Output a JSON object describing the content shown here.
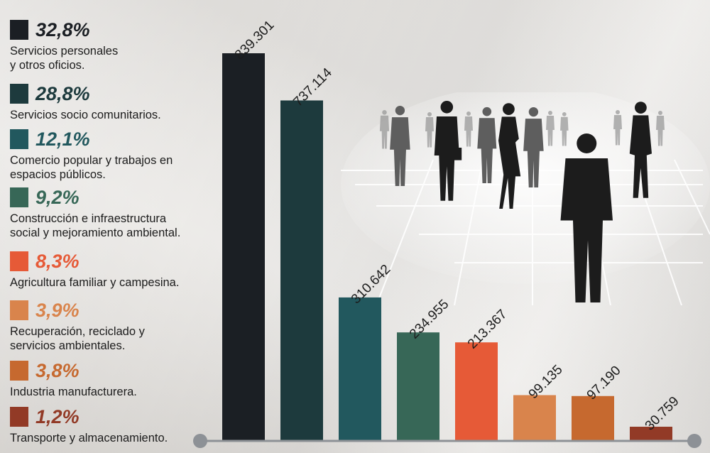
{
  "chart_data": {
    "type": "bar",
    "title": "",
    "xlabel": "",
    "ylabel": "",
    "ylim": [
      0,
      839301
    ],
    "grid": false,
    "legend_placement": "left",
    "categories": [
      "Servicios personales\ny otros oficios.",
      "Servicios socio comunitarios.",
      "Comercio popular y trabajos en\nespacios públicos.",
      "Construcción e infraestructura\nsocial y mejoramiento ambiental.",
      "Agricultura familiar y campesina.",
      "Recuperación, reciclado y\nservicios ambientales.",
      "Industria manufacturera.",
      "Transporte y almacenamiento."
    ],
    "values": [
      839301,
      737114,
      310642,
      234955,
      213367,
      99135,
      97190,
      30759
    ],
    "value_labels": [
      "839.301",
      "737.114",
      "310.642",
      "234.955",
      "213.367",
      "99.135",
      "97.190",
      "30.759"
    ],
    "percentages": [
      "32,8%",
      "28,8%",
      "12,1%",
      "9,2%",
      "8,3%",
      "3,9%",
      "3,8%",
      "1,2%"
    ],
    "colors": [
      "#1b1f24",
      "#1d3a3d",
      "#22585e",
      "#376757",
      "#e65a37",
      "#d9844c",
      "#c6692f",
      "#923a26"
    ]
  },
  "style": {
    "pct_colors": [
      "#1b1f24",
      "#1d3a3d",
      "#22585e",
      "#376757",
      "#e65a37",
      "#d9844c",
      "#c6692f",
      "#923a26"
    ],
    "axis_color": "#8d9196"
  }
}
